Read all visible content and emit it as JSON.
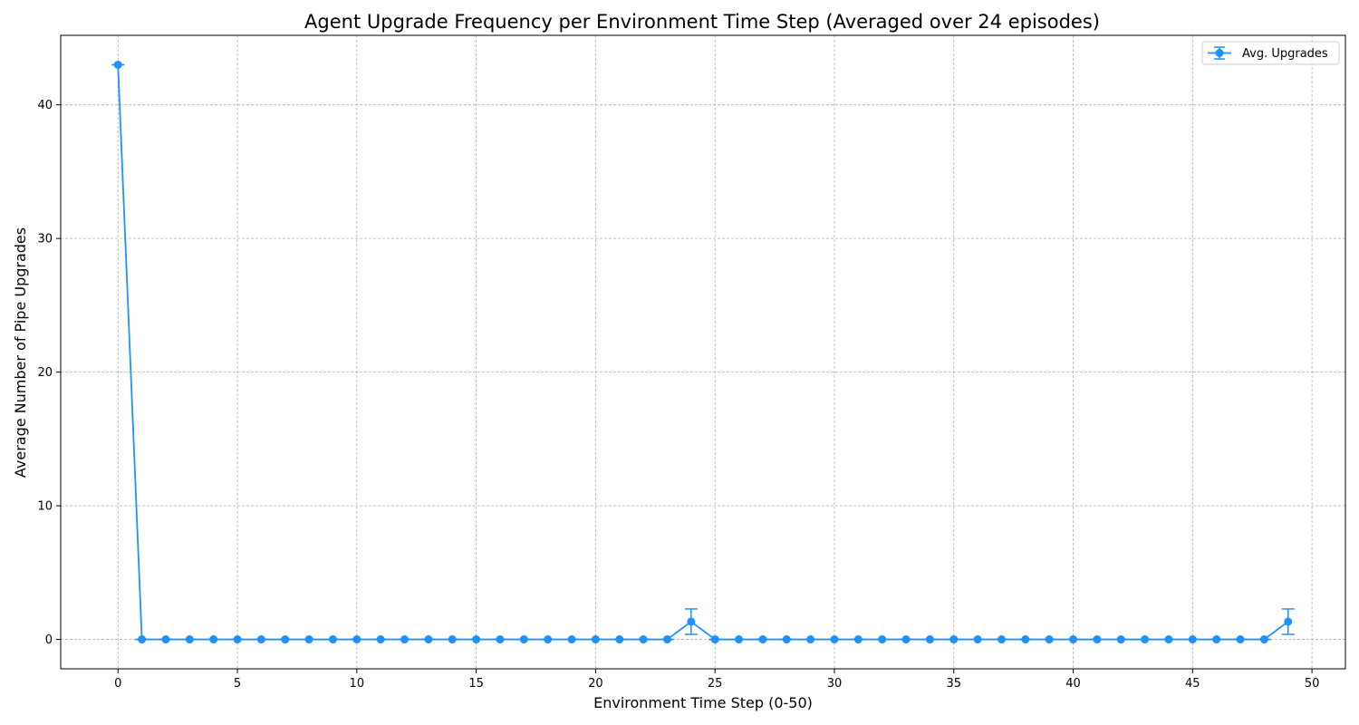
{
  "chart_data": {
    "type": "line",
    "title": "Agent Upgrade Frequency per Environment Time Step (Averaged over 24 episodes)",
    "xlabel": "Environment Time Step (0-50)",
    "ylabel": "Average Number of Pipe Upgrades",
    "xlim": [
      -2.4,
      51.4
    ],
    "ylim": [
      -2.2,
      45.2
    ],
    "xticks": [
      0,
      5,
      10,
      15,
      20,
      25,
      30,
      35,
      40,
      45,
      50
    ],
    "yticks": [
      0,
      10,
      20,
      30,
      40
    ],
    "grid": true,
    "legend_position": "top-right",
    "series": [
      {
        "name": "Avg. Upgrades",
        "color": "#1e90ff",
        "marker": "circle",
        "x": [
          0,
          1,
          2,
          3,
          4,
          5,
          6,
          7,
          8,
          9,
          10,
          11,
          12,
          13,
          14,
          15,
          16,
          17,
          18,
          19,
          20,
          21,
          22,
          23,
          24,
          25,
          26,
          27,
          28,
          29,
          30,
          31,
          32,
          33,
          34,
          35,
          36,
          37,
          38,
          39,
          40,
          41,
          42,
          43,
          44,
          45,
          46,
          47,
          48,
          49
        ],
        "y": [
          43,
          0,
          0,
          0,
          0,
          0,
          0,
          0,
          0,
          0,
          0,
          0,
          0,
          0,
          0,
          0,
          0,
          0,
          0,
          0,
          0,
          0,
          0,
          0,
          1.33,
          0,
          0,
          0,
          0,
          0,
          0,
          0,
          0,
          0,
          0,
          0,
          0,
          0,
          0,
          0,
          0,
          0,
          0,
          0,
          0,
          0,
          0,
          0,
          0,
          1.33
        ],
        "error": [
          0,
          0,
          0,
          0,
          0,
          0,
          0,
          0,
          0,
          0,
          0,
          0,
          0,
          0,
          0,
          0,
          0,
          0,
          0,
          0,
          0,
          0,
          0,
          0,
          0.95,
          0,
          0,
          0,
          0,
          0,
          0,
          0,
          0,
          0,
          0,
          0,
          0,
          0,
          0,
          0,
          0,
          0,
          0,
          0,
          0,
          0,
          0,
          0,
          0,
          0.95
        ]
      }
    ]
  }
}
